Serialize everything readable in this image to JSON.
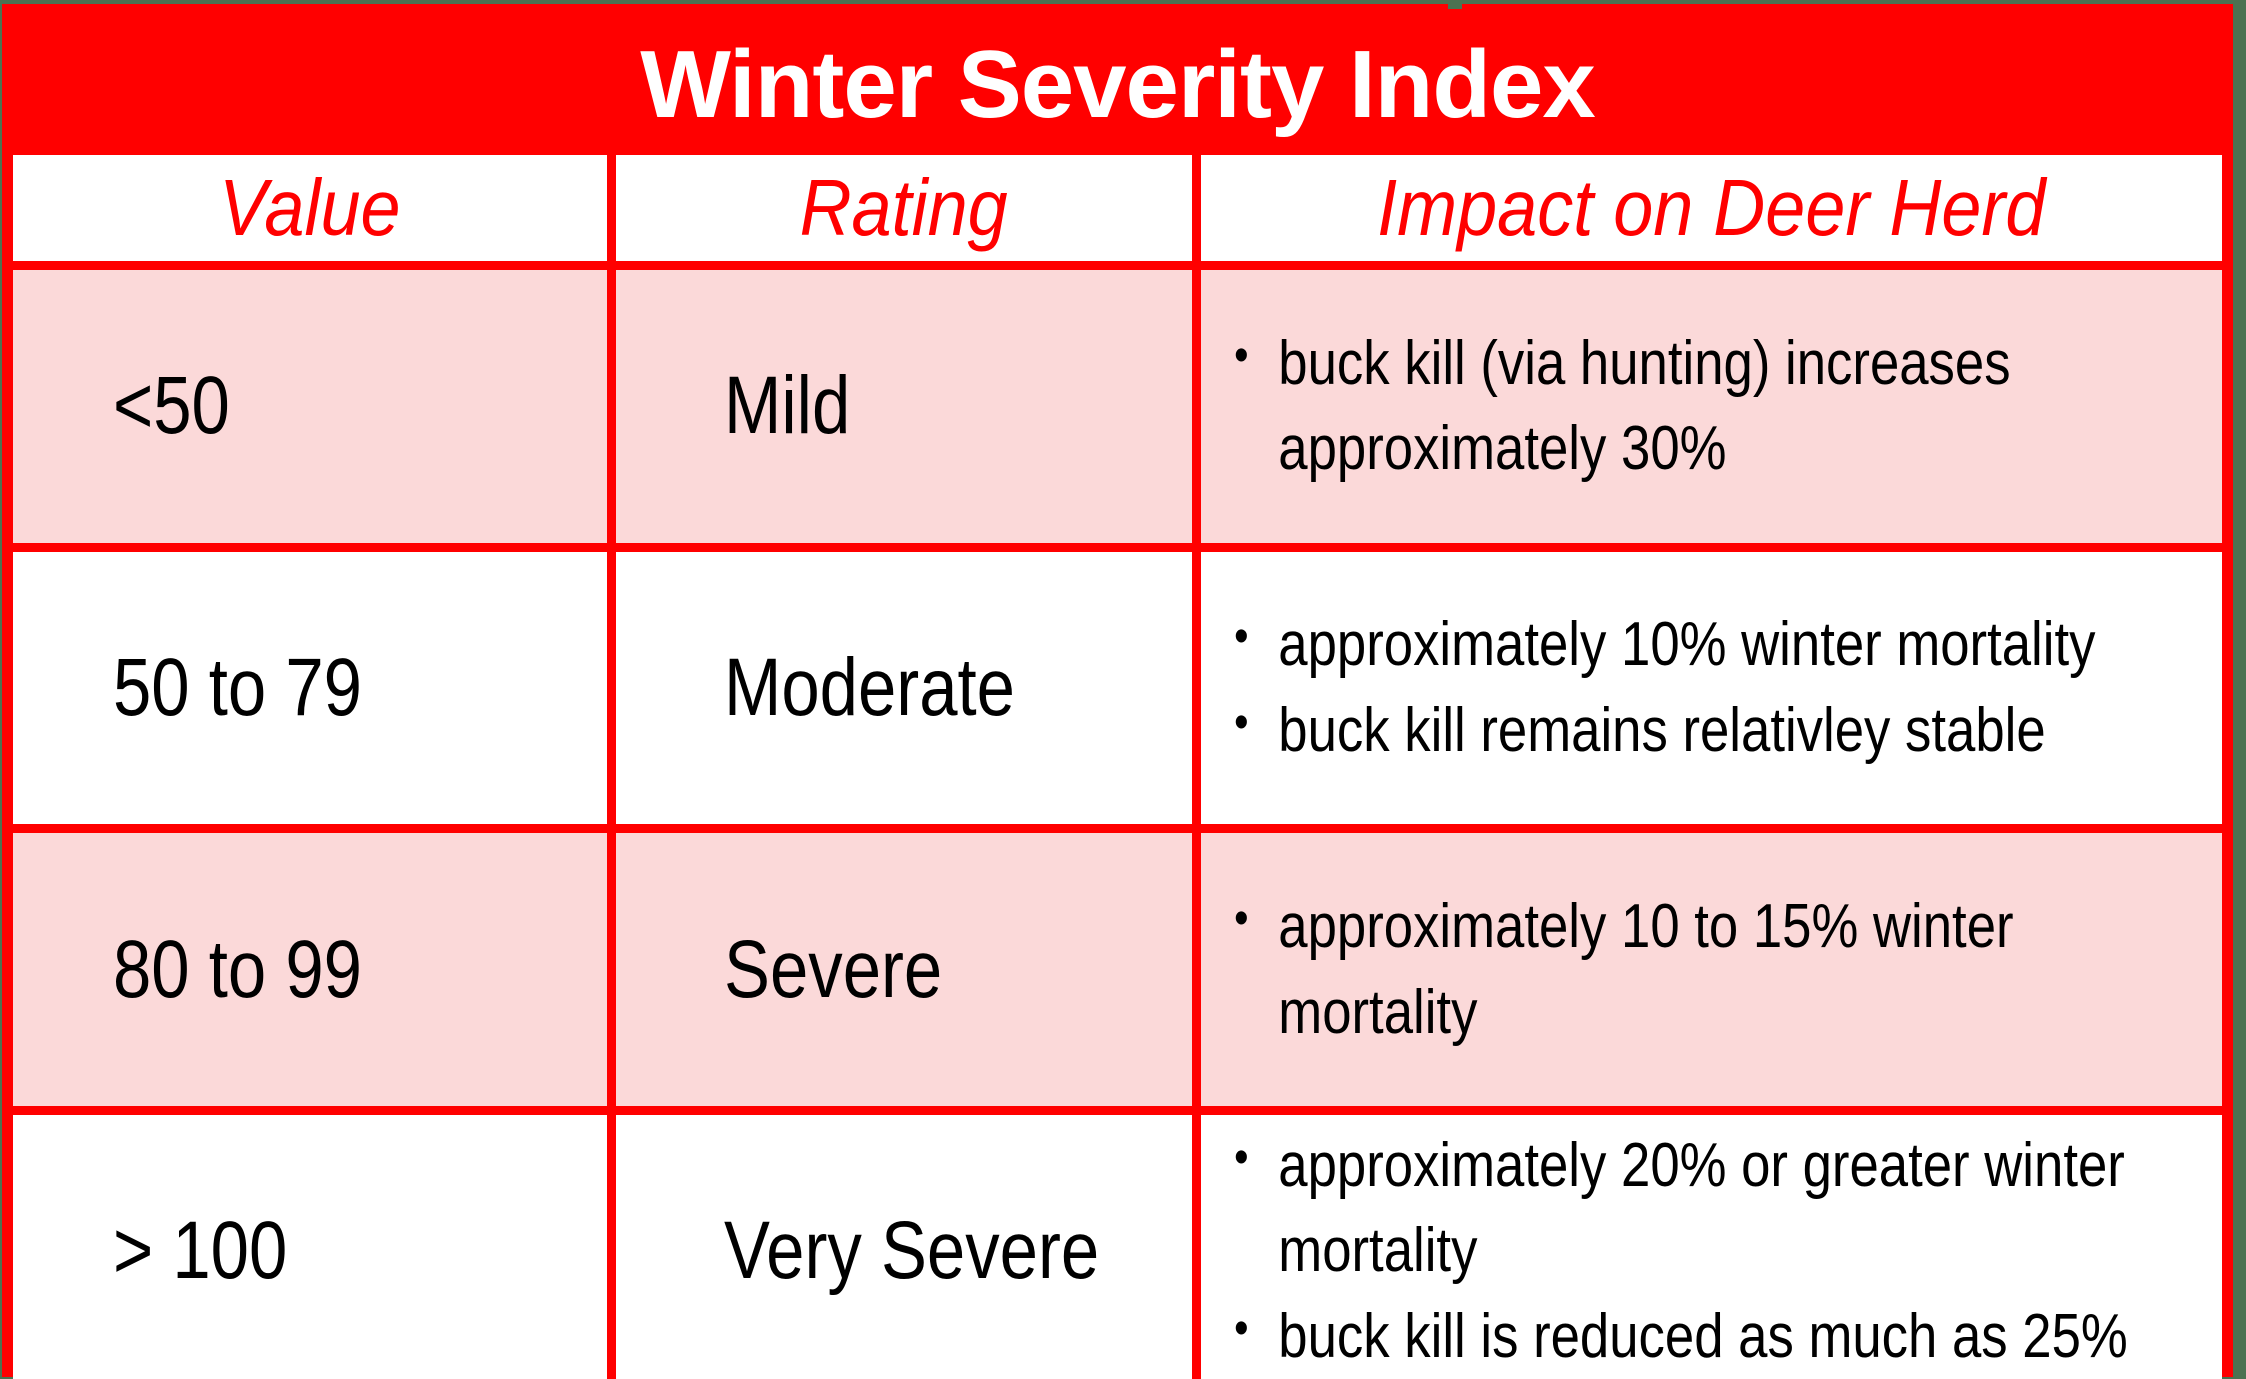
{
  "title": "Winter Severity Index",
  "columns": {
    "value": "Value",
    "rating": "Rating",
    "impact": "Impact on Deer Herd"
  },
  "rows": [
    {
      "value": "<50",
      "rating": "Mild",
      "impact": [
        [
          "buck kill (via hunting) increases",
          "approximately 30%"
        ]
      ]
    },
    {
      "value": "50 to 79",
      "rating": "Moderate",
      "impact": [
        [
          "approximately 10% winter mortality"
        ],
        [
          "buck kill remains relativley stable"
        ]
      ]
    },
    {
      "value": "80 to 99",
      "rating": "Severe",
      "impact": [
        [
          "approximately 10 to 15% winter",
          "mortality"
        ]
      ]
    },
    {
      "value": "> 100",
      "rating": "Very Severe",
      "impact": [
        [
          "approximately 20% or greater winter",
          "mortality"
        ],
        [
          "buck kill is reduced as much as 25%"
        ]
      ]
    }
  ],
  "colors": {
    "accent_red": "#FF0000",
    "row_shade_pink": "#FBD9D9",
    "background_green": "#4C7251",
    "title_text": "#FFFFFF",
    "header_text": "#FF0000",
    "body_text": "#000000"
  }
}
